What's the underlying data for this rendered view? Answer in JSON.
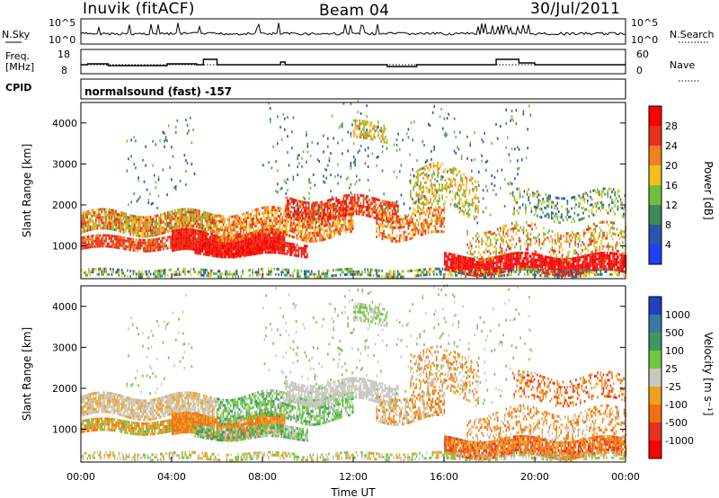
{
  "header": {
    "station": "Inuvik (fitACF)",
    "beam": "Beam 04",
    "date": "30/Jul/2011"
  },
  "strips": {
    "nsky_label": "N.Sky",
    "nsky_ticks": [
      "10^5",
      "10^0"
    ],
    "nsearch_label": "N.Search",
    "nsearch_ticks": [
      "10^5",
      "10^0"
    ],
    "freq_label_1": "Freq.",
    "freq_label_2": "[MHz]",
    "freq_ticks": [
      "18",
      "8"
    ],
    "nave_label": "Nave",
    "nave_ticks": [
      "60",
      "0"
    ],
    "cpid_label": "CPID",
    "cpid_value": "normalsound (fast) -157"
  },
  "chart_data": [
    {
      "type": "heatmap",
      "name": "power",
      "ylabel": "Slant Range [km]",
      "yticks": [
        "1000",
        "2000",
        "3000",
        "4000"
      ],
      "ytick_values": [
        1000,
        2000,
        3000,
        4000
      ],
      "ylim": [
        200,
        4500
      ],
      "colorbar_label": "Power [dB]",
      "colorbar_ticks": [
        "4",
        "8",
        "12",
        "16",
        "20",
        "24",
        "28"
      ],
      "colorbar_colors": [
        "#1f3fff",
        "#2a55a8",
        "#3c8a5a",
        "#6fbf3a",
        "#f2c018",
        "#f08020",
        "#e83018",
        "#ff0000"
      ]
    },
    {
      "type": "heatmap",
      "name": "velocity",
      "ylabel": "Slant Range [km]",
      "yticks": [
        "1000",
        "2000",
        "3000",
        "4000"
      ],
      "ytick_values": [
        1000,
        2000,
        3000,
        4000
      ],
      "ylim": [
        200,
        4500
      ],
      "colorbar_label": "Velocity [m s⁻¹]",
      "colorbar_ticks": [
        "1000",
        "500",
        "100",
        "25",
        "-25",
        "-100",
        "-500",
        "-1000"
      ],
      "colorbar_colors": [
        "#2040c0",
        "#3878a8",
        "#3c9a60",
        "#70c840",
        "#c8c8c0",
        "#f0a020",
        "#f07010",
        "#e83020",
        "#ff0000"
      ]
    }
  ],
  "xaxis": {
    "label": "Time UT",
    "ticks": [
      "00:00",
      "04:00",
      "08:00",
      "12:00",
      "16:00",
      "20:00",
      "00:00"
    ],
    "tick_hours": [
      0,
      4,
      8,
      12,
      16,
      20,
      24
    ]
  }
}
